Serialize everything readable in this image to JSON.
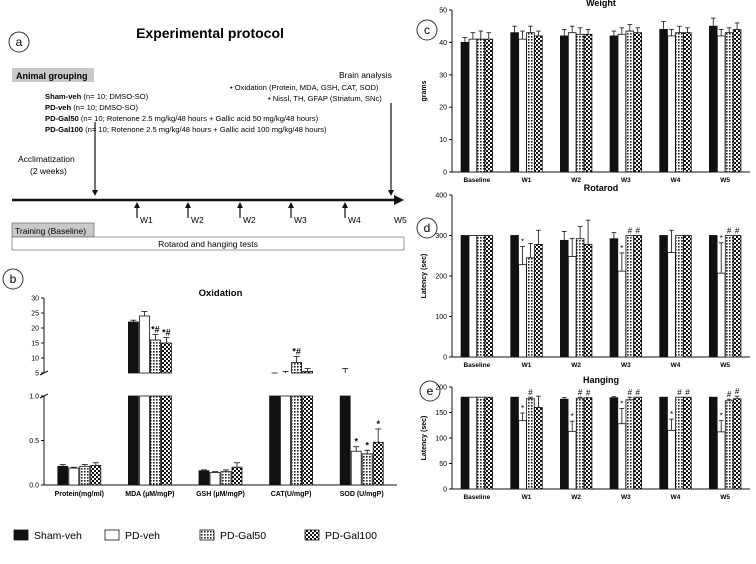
{
  "panel_labels": {
    "a": "a",
    "b": "b",
    "c": "c",
    "d": "d",
    "e": "e"
  },
  "protocol": {
    "title": "Experimental protocol",
    "grouping_header": "Animal grouping",
    "groups": [
      {
        "name": "Sham-veh",
        "desc": " (n= 10; DMSO-SO)"
      },
      {
        "name": "PD-veh",
        "desc": " (n= 10; DMSO-SO)"
      },
      {
        "name": "PD-Gal50",
        "desc": " (n= 10; Rotenone 2.5 mg/kg/48 hours + Gallic acid 50 mg/kg/48 hours)"
      },
      {
        "name": "PD-Gal100",
        "desc": " (n= 10; Rotenone 2.5 mg/kg/48 hours + Gallic acid 100 mg/kg/48 hours)"
      }
    ],
    "brain_analysis_title": "Brain analysis",
    "brain_analysis_items": [
      "•  Oxidation (Protein, MDA, GSH, CAT, SOD)",
      "•  Nissl, TH, GFAP (Striatum, SNc)"
    ],
    "acclimatization_line1": "Acclimatization",
    "acclimatization_line2": "(2 weeks)",
    "week_ticks": [
      "W1",
      "W2",
      "W2",
      "W3",
      "W4",
      "W5"
    ],
    "training_label": "Training (Baseline)",
    "tests_label": "Rotarod and hanging tests"
  },
  "legend": {
    "items": [
      {
        "label": "Sham-veh",
        "pattern": "black"
      },
      {
        "label": "PD-veh",
        "pattern": "white"
      },
      {
        "label": "PD-Gal50",
        "pattern": "dots"
      },
      {
        "label": "PD-Gal100",
        "pattern": "checker"
      }
    ]
  },
  "chart_data": [
    {
      "id": "oxidation",
      "type": "bar",
      "title": "Oxidation",
      "categories": [
        "Protein(mg/ml)",
        "MDA (µM/mgP)",
        "GSH (µM/mgP)",
        "CAT(U/mgP)",
        "SOD (U/mgP)"
      ],
      "series": [
        {
          "name": "Sham-veh",
          "values": [
            0.21,
            22,
            0.16,
            4,
            4
          ],
          "errors": [
            0.02,
            0.6,
            0.01,
            0.6,
            2.5
          ]
        },
        {
          "name": "PD-veh",
          "values": [
            0.19,
            24,
            0.14,
            4,
            0.38
          ],
          "errors": [
            0.01,
            1.5,
            0.01,
            1.5,
            0.05
          ]
        },
        {
          "name": "PD-Gal50",
          "values": [
            0.21,
            16,
            0.15,
            8.5,
            0.35
          ],
          "errors": [
            0.02,
            1.8,
            0.02,
            2,
            0.04
          ]
        },
        {
          "name": "PD-Gal100",
          "values": [
            0.22,
            15,
            0.2,
            5.5,
            0.48
          ],
          "errors": [
            0.03,
            1.8,
            0.05,
            1,
            0.15
          ]
        }
      ],
      "annotations": [
        {
          "category": 1,
          "series": 2,
          "text": "*#"
        },
        {
          "category": 1,
          "series": 3,
          "text": "*#"
        },
        {
          "category": 3,
          "series": 2,
          "text": "*#"
        },
        {
          "category": 4,
          "series": 1,
          "text": "*"
        },
        {
          "category": 4,
          "series": 2,
          "text": "*"
        },
        {
          "category": 4,
          "series": 3,
          "text": "*"
        }
      ],
      "y_axis": {
        "lower": [
          0,
          1
        ],
        "upper": [
          5,
          30
        ],
        "break": true
      },
      "lower_ticks": [
        "0.0",
        "0.5",
        "1.0"
      ],
      "lower_tick_values": [
        0,
        0.5,
        1
      ],
      "upper_ticks": [
        "5",
        "10",
        "15",
        "20",
        "25",
        "30"
      ],
      "upper_tick_values": [
        5,
        10,
        15,
        20,
        25,
        30
      ]
    },
    {
      "id": "weight",
      "type": "bar",
      "title": "Weight",
      "ylabel": "grams",
      "ylim": [
        0,
        50
      ],
      "yticks": [
        "0",
        "10",
        "20",
        "30",
        "40",
        "50"
      ],
      "ytick_values": [
        0,
        10,
        20,
        30,
        40,
        50
      ],
      "categories": [
        "Baseline",
        "W1",
        "W2",
        "W3",
        "W4",
        "W5"
      ],
      "series": [
        {
          "name": "Sham-veh",
          "values": [
            40,
            43,
            42,
            42,
            44,
            45
          ],
          "errors": [
            1.5,
            2,
            2,
            1.5,
            2.5,
            2.5
          ]
        },
        {
          "name": "PD-veh",
          "values": [
            41,
            41,
            43,
            42.5,
            42,
            42
          ],
          "errors": [
            2,
            2.5,
            2,
            2,
            2,
            2
          ]
        },
        {
          "name": "PD-Gal50",
          "values": [
            41,
            43,
            42.5,
            43.5,
            43,
            43
          ],
          "errors": [
            2.5,
            2,
            2,
            2,
            2,
            1.5
          ]
        },
        {
          "name": "PD-Gal100",
          "values": [
            41,
            42,
            42.5,
            43,
            43,
            44
          ],
          "errors": [
            2,
            1.5,
            1.5,
            1.5,
            1.5,
            2
          ]
        }
      ],
      "annotations": []
    },
    {
      "id": "rotarod",
      "type": "bar",
      "title": "Rotarod",
      "ylabel": "Latency (sec)",
      "ylim": [
        0,
        400
      ],
      "yticks": [
        "0",
        "100",
        "200",
        "300",
        "400"
      ],
      "ytick_values": [
        0,
        100,
        200,
        300,
        400
      ],
      "categories": [
        "Baseline",
        "W1",
        "W2",
        "W3",
        "W4",
        "W5"
      ],
      "series": [
        {
          "name": "Sham-veh",
          "values": [
            300,
            300,
            288,
            292,
            300,
            300
          ],
          "errors": [
            0,
            0,
            22,
            15,
            0,
            0
          ]
        },
        {
          "name": "PD-veh",
          "values": [
            300,
            228,
            248,
            212,
            258,
            207
          ],
          "errors": [
            0,
            45,
            45,
            45,
            55,
            75
          ]
        },
        {
          "name": "PD-Gal50",
          "values": [
            300,
            245,
            292,
            300,
            300,
            300
          ],
          "errors": [
            0,
            35,
            30,
            0,
            0,
            0
          ]
        },
        {
          "name": "PD-Gal100",
          "values": [
            300,
            278,
            278,
            300,
            300,
            300
          ],
          "errors": [
            0,
            35,
            60,
            0,
            0,
            0
          ]
        }
      ],
      "annotations": [
        {
          "category": 1,
          "series": 1,
          "text": "*"
        },
        {
          "category": 3,
          "series": 1,
          "text": "*"
        },
        {
          "category": 3,
          "series": 2,
          "text": "#"
        },
        {
          "category": 3,
          "series": 3,
          "text": "#"
        },
        {
          "category": 5,
          "series": 1,
          "text": "*"
        },
        {
          "category": 5,
          "series": 2,
          "text": "#"
        },
        {
          "category": 5,
          "series": 3,
          "text": "#"
        }
      ]
    },
    {
      "id": "hanging",
      "type": "bar",
      "title": "Hanging",
      "ylabel": "Latency (sec)",
      "ylim": [
        0,
        200
      ],
      "yticks": [
        "0",
        "50",
        "100",
        "150",
        "200"
      ],
      "ytick_values": [
        0,
        50,
        100,
        150,
        200
      ],
      "categories": [
        "Baseline",
        "W1",
        "W2",
        "W3",
        "W4",
        "W5"
      ],
      "series": [
        {
          "name": "Sham-veh",
          "values": [
            180,
            180,
            176,
            179,
            180,
            180
          ],
          "errors": [
            0,
            0,
            3,
            2,
            0,
            0
          ]
        },
        {
          "name": "PD-veh",
          "values": [
            180,
            134,
            113,
            128,
            115,
            112
          ],
          "errors": [
            0,
            15,
            20,
            30,
            22,
            22
          ]
        },
        {
          "name": "PD-Gal50",
          "values": [
            180,
            177,
            178,
            175,
            180,
            173
          ],
          "errors": [
            0,
            3,
            2,
            5,
            0,
            3
          ]
        },
        {
          "name": "PD-Gal100",
          "values": [
            180,
            160,
            179,
            180,
            180,
            177
          ],
          "errors": [
            0,
            22,
            0,
            0,
            0,
            5
          ]
        }
      ],
      "annotations": [
        {
          "category": 1,
          "series": 1,
          "text": "*"
        },
        {
          "category": 1,
          "series": 2,
          "text": "#"
        },
        {
          "category": 2,
          "series": 1,
          "text": "*"
        },
        {
          "category": 2,
          "series": 2,
          "text": "#"
        },
        {
          "category": 2,
          "series": 3,
          "text": "#"
        },
        {
          "category": 3,
          "series": 1,
          "text": "*"
        },
        {
          "category": 3,
          "series": 2,
          "text": "#"
        },
        {
          "category": 3,
          "series": 3,
          "text": "#"
        },
        {
          "category": 4,
          "series": 1,
          "text": "*"
        },
        {
          "category": 4,
          "series": 2,
          "text": "#"
        },
        {
          "category": 4,
          "series": 3,
          "text": "#"
        },
        {
          "category": 5,
          "series": 1,
          "text": "*"
        },
        {
          "category": 5,
          "series": 2,
          "text": "#"
        },
        {
          "category": 5,
          "series": 3,
          "text": "#"
        }
      ]
    }
  ]
}
